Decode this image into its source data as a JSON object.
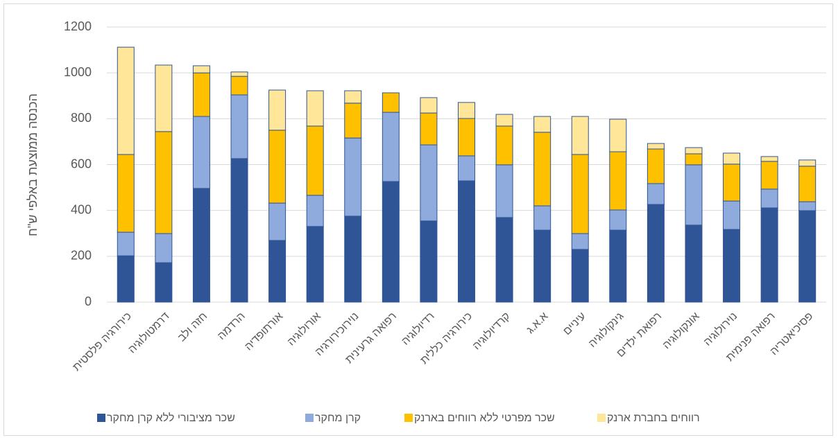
{
  "chart_data": {
    "type": "stacked_bar",
    "y_label": "הכנסה ממוצעת באלפי ש\"ח",
    "categories": [
      "כירורגיה פלסטית",
      "דרמטולוגיה",
      "חזה ולב",
      "הרדמה",
      "אורתופדיה",
      "אורולוגיה",
      "נוירוכירורגיה",
      "רפואה גרעינית",
      "רדיולוגיה",
      "כירורגיה כללית",
      "קרדיולוגיה",
      "א.א.ג",
      "עיניים",
      "גינקולוגיה",
      "רפואת ילדים",
      "אונקולוגיה",
      "נוירולוגיה",
      "רפואה פנימית",
      "פסיכיאטריה"
    ],
    "series": [
      {
        "name": "שכר מציבורי ללא קרן מחקר",
        "color": "#2f5597",
        "values": [
          202,
          172,
          496,
          626,
          269,
          330,
          375,
          526,
          354,
          529,
          369,
          314,
          230,
          314,
          426,
          336,
          317,
          411,
          399
        ]
      },
      {
        "name": "קרן מחקר",
        "color": "#8faadc",
        "values": [
          103,
          127,
          314,
          278,
          163,
          136,
          341,
          302,
          332,
          109,
          230,
          106,
          69,
          88,
          91,
          263,
          124,
          82,
          39
        ]
      },
      {
        "name": "שכר מפרטי ללא רווחים בארנק",
        "color": "#ffc000",
        "values": [
          339,
          445,
          190,
          81,
          318,
          302,
          152,
          85,
          139,
          163,
          169,
          321,
          345,
          254,
          151,
          48,
          161,
          121,
          155
        ]
      },
      {
        "name": "רווחים בחברת ארנק",
        "color": "#ffe699",
        "values": [
          468,
          290,
          31,
          19,
          175,
          154,
          54,
          0,
          67,
          70,
          51,
          69,
          166,
          142,
          24,
          27,
          48,
          21,
          27
        ]
      }
    ],
    "ylim": [
      0,
      1200
    ],
    "yticks": [
      0,
      200,
      400,
      600,
      800,
      1000,
      1200
    ],
    "grid": true,
    "legend": "bottom"
  }
}
